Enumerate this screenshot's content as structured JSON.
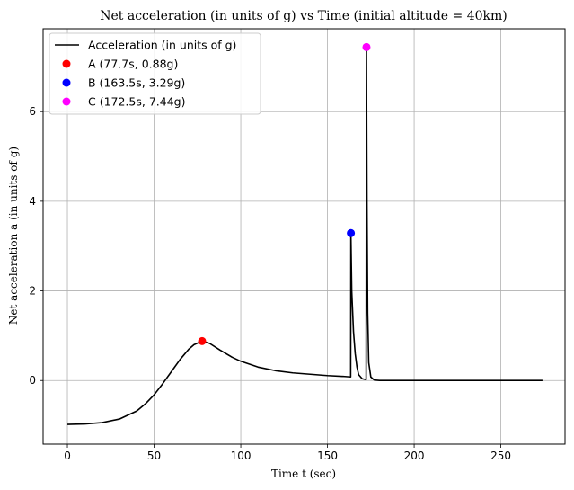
{
  "chart_data": {
    "type": "line",
    "title": "Net acceleration (in units of g) vs Time (initial altitude = 40km)",
    "xlabel": "Time t (sec)",
    "ylabel": "Net acceleration a (in units of g)",
    "xlim": [
      -14,
      287
    ],
    "ylim": [
      -1.42,
      7.85
    ],
    "xticks": [
      0,
      50,
      100,
      150,
      200,
      250
    ],
    "yticks": [
      0,
      2,
      4,
      6
    ],
    "grid": true,
    "legend_position": "top-left",
    "series": [
      {
        "name": "Acceleration (in units of g)",
        "color": "#000000",
        "x": [
          0,
          10,
          20,
          30,
          40,
          45,
          50,
          55,
          60,
          65,
          70,
          73,
          77.7,
          82,
          88,
          95,
          100,
          110,
          120,
          130,
          140,
          150,
          160,
          163.4,
          163.5,
          164,
          165,
          166,
          167,
          168,
          170,
          172.3,
          172.5,
          172.8,
          173.2,
          173.8,
          175,
          177,
          180,
          200,
          274
        ],
        "y": [
          -0.98,
          -0.97,
          -0.94,
          -0.86,
          -0.68,
          -0.52,
          -0.32,
          -0.07,
          0.2,
          0.47,
          0.7,
          0.8,
          0.88,
          0.83,
          0.68,
          0.52,
          0.43,
          0.3,
          0.22,
          0.17,
          0.14,
          0.11,
          0.09,
          0.08,
          3.29,
          2.0,
          1.1,
          0.6,
          0.3,
          0.13,
          0.04,
          0.02,
          7.44,
          4.0,
          1.5,
          0.4,
          0.08,
          0.01,
          0.0,
          0.0,
          0.0
        ]
      }
    ],
    "points": [
      {
        "name": "A (77.7s, 0.88g)",
        "x": 77.7,
        "y": 0.88,
        "color": "#ff0000"
      },
      {
        "name": "B (163.5s, 3.29g)",
        "x": 163.5,
        "y": 3.29,
        "color": "#0000ff"
      },
      {
        "name": "C (172.5s, 7.44g)",
        "x": 172.5,
        "y": 7.44,
        "color": "#ff00ff"
      }
    ]
  }
}
